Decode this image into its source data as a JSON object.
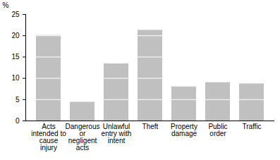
{
  "chart_data": {
    "type": "bar",
    "y_label": "%",
    "categories": [
      "Acts intended to cause injury",
      "Dangerous or negligent acts",
      "Unlawful entry with intent",
      "Theft",
      "Property damage",
      "Public order",
      "Traffic"
    ],
    "values": [
      20.1,
      4.4,
      13.4,
      21.3,
      8.0,
      9.0,
      8.7
    ],
    "color": "#c0c0c0",
    "ylim": [
      0,
      25
    ],
    "yticks": [
      0,
      5,
      10,
      15,
      20,
      25
    ],
    "grid": true
  }
}
